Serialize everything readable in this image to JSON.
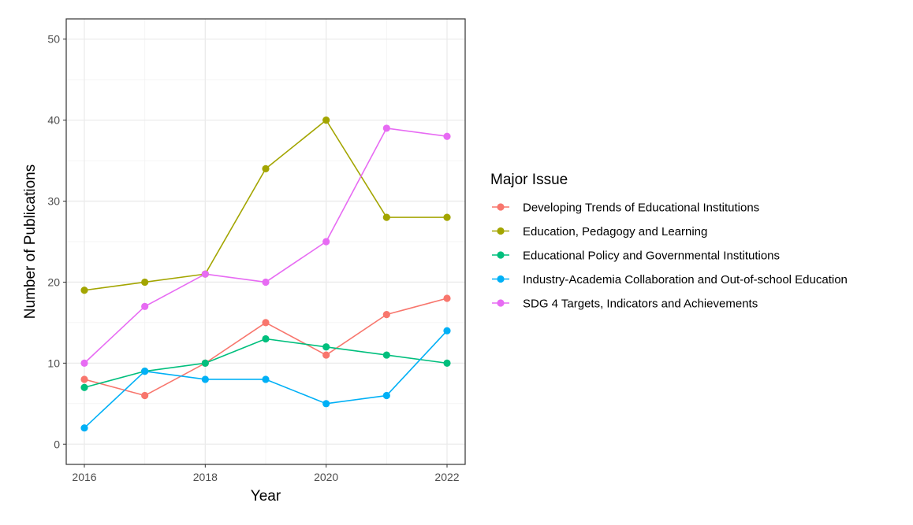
{
  "chart_data": {
    "type": "line",
    "xlabel": "Year",
    "ylabel": "Number of Publications",
    "x": [
      2016,
      2017,
      2018,
      2019,
      2020,
      2021,
      2022
    ],
    "xticks": [
      2016,
      2018,
      2020,
      2022
    ],
    "yticks": [
      0,
      10,
      20,
      30,
      40,
      50
    ],
    "xlim": [
      2016,
      2022
    ],
    "ylim": [
      0,
      50
    ],
    "grid": true,
    "legend": {
      "title": "Major Issue",
      "placement": "right"
    },
    "series": [
      {
        "name": "Developing Trends of Educational Institutions",
        "color": "#F8766D",
        "values": [
          8,
          6,
          10,
          15,
          11,
          16,
          18
        ]
      },
      {
        "name": "Education, Pedagogy and Learning",
        "color": "#A3A500",
        "values": [
          19,
          20,
          21,
          34,
          40,
          28,
          28
        ]
      },
      {
        "name": "Educational Policy and Governmental Institutions",
        "color": "#00BF7D",
        "values": [
          7,
          9,
          10,
          13,
          12,
          11,
          10
        ]
      },
      {
        "name": "Industry-Academia Collaboration and Out-of-school Education",
        "color": "#00B0F6",
        "values": [
          2,
          9,
          8,
          8,
          5,
          6,
          14
        ]
      },
      {
        "name": "SDG 4 Targets, Indicators and Achievements",
        "color": "#E76BF3",
        "values": [
          10,
          17,
          21,
          20,
          25,
          39,
          38
        ]
      }
    ]
  }
}
